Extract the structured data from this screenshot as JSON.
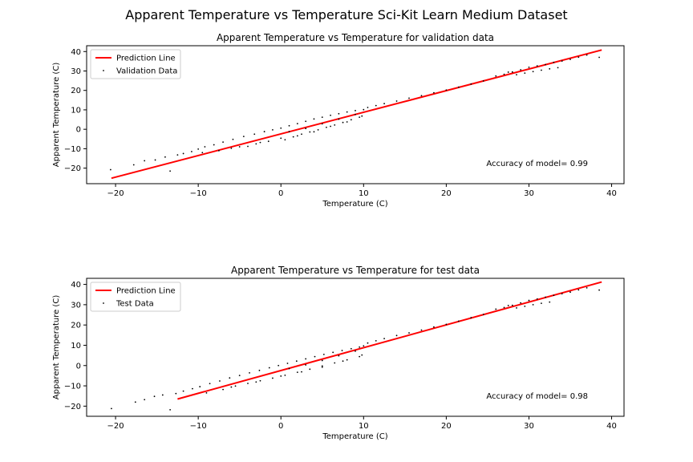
{
  "figure": {
    "suptitle": "Apparent Temperature vs Temperature Sci-Kit Learn Medium Dataset"
  },
  "chart_data": [
    {
      "type": "scatter",
      "title": "Apparent Temperature vs Temperature for validation data",
      "xlabel": "Temperature (C)",
      "ylabel": "Apparent Temperature (C)",
      "xlim": [
        -23.5,
        41.5
      ],
      "ylim": [
        -28,
        43
      ],
      "xticks": [
        -20,
        -10,
        0,
        10,
        20,
        30,
        40
      ],
      "xtick_labels": [
        "−20",
        "−10",
        "0",
        "10",
        "20",
        "30",
        "40"
      ],
      "yticks": [
        -20,
        -10,
        0,
        10,
        20,
        30,
        40
      ],
      "ytick_labels": [
        "−20",
        "−10",
        "0",
        "10",
        "20",
        "30",
        "40"
      ],
      "grid": false,
      "legend_position": "top-left",
      "annotation": "Accuracy of model= 0.99",
      "series": [
        {
          "name": "Prediction Line",
          "kind": "line",
          "color": "#ff0000",
          "x": [
            -20.5,
            38.8
          ],
          "y": [
            -25.2,
            40.8
          ]
        },
        {
          "name": "Validation Data",
          "kind": "scatter",
          "color": "#000000",
          "marker": ".",
          "x": [
            -20.6,
            -17.8,
            -16.5,
            -15.2,
            -14,
            -13.4,
            -12.5,
            -11.8,
            -10.8,
            -10,
            -9.2,
            -8.1,
            -7,
            -5.8,
            -4.5,
            -3.2,
            -2,
            -1,
            0,
            1,
            2,
            3,
            4,
            5,
            6,
            7,
            8,
            9,
            10,
            -9.5,
            -7.5,
            -6,
            -4,
            -3,
            -1.5,
            0.5,
            1.5,
            2.5,
            3.5,
            4.5,
            5.5,
            6.5,
            7.5,
            8.5,
            9.5,
            -5,
            -2.5,
            0,
            2,
            4,
            6,
            8,
            9.8,
            1,
            3,
            5,
            7,
            9,
            10.5,
            11.5,
            12.5,
            14,
            15.5,
            17,
            18.5,
            20,
            21.5,
            23,
            24.5,
            26,
            27,
            28,
            29,
            30,
            31,
            32,
            33,
            34,
            35,
            36,
            37,
            38.5,
            27.5,
            28.5,
            29.5,
            30.5,
            31.5,
            32.5,
            33.5
          ],
          "y": [
            -20.8,
            -18.3,
            -16.2,
            -15.8,
            -14.3,
            -21.5,
            -13.2,
            -12.5,
            -11.5,
            -10.2,
            -9,
            -8,
            -6.6,
            -5.2,
            -3.7,
            -2.5,
            -1.2,
            -0.3,
            0.6,
            1.8,
            2.9,
            4.1,
            5.3,
            6.2,
            7.2,
            8,
            8.9,
            9.6,
            10.1,
            -12,
            -11,
            -9.8,
            -8.8,
            -7.5,
            -6.2,
            -5.4,
            -3.9,
            -2.5,
            -1.4,
            -0.3,
            1,
            2.2,
            3.5,
            4.9,
            6.2,
            -9,
            -6.8,
            -4.6,
            -3.4,
            -1.3,
            1.5,
            3.8,
            6.8,
            -1.2,
            0.4,
            2.8,
            5.2,
            7.6,
            11.2,
            12.2,
            13.2,
            14.5,
            16,
            17.3,
            18.8,
            20.2,
            21.7,
            23.3,
            24.9,
            27.4,
            28.3,
            29.5,
            30.6,
            31.9,
            32.6,
            33.3,
            34.4,
            35.1,
            36,
            37.1,
            38.2,
            37,
            29.4,
            28.1,
            28.9,
            29.7,
            30.4,
            31.1,
            31.7
          ]
        }
      ]
    },
    {
      "type": "scatter",
      "title": "Apparent Temperature vs Temperature for test data",
      "xlabel": "Temperature (C)",
      "ylabel": "Apparent Temperature (C)",
      "xlim": [
        -23.5,
        41.5
      ],
      "ylim": [
        -25,
        43
      ],
      "xticks": [
        -20,
        -10,
        0,
        10,
        20,
        30,
        40
      ],
      "xtick_labels": [
        "−20",
        "−10",
        "0",
        "10",
        "20",
        "30",
        "40"
      ],
      "yticks": [
        -20,
        -10,
        0,
        10,
        20,
        30,
        40
      ],
      "ytick_labels": [
        "−20",
        "−10",
        "0",
        "10",
        "20",
        "30",
        "40"
      ],
      "grid": false,
      "legend_position": "top-left",
      "annotation": "Accuracy of model= 0.98",
      "series": [
        {
          "name": "Prediction Line",
          "kind": "line",
          "color": "#ff0000",
          "x": [
            -12.5,
            38.8
          ],
          "y": [
            -16.5,
            41.2
          ]
        },
        {
          "name": "Test Data",
          "kind": "scatter",
          "color": "#000000",
          "marker": ".",
          "x": [
            -20.5,
            -17.6,
            -16.5,
            -15.3,
            -14.3,
            -13.4,
            -12.7,
            -11.8,
            -10.7,
            -9.8,
            -8.6,
            -7.4,
            -6.2,
            -5,
            -3.8,
            -2.6,
            -1.4,
            -0.3,
            0.8,
            1.9,
            3,
            4.1,
            5.2,
            6.3,
            7.4,
            8.5,
            9.5,
            10,
            -9,
            -7,
            -5.5,
            -4,
            -2.5,
            -1,
            0.5,
            2,
            3.5,
            5,
            6.5,
            8,
            9.5,
            -6,
            -3,
            0,
            2.5,
            5,
            7.5,
            9.8,
            1,
            3,
            5,
            7,
            9,
            10.5,
            11.5,
            12.5,
            14,
            15.5,
            17,
            18.5,
            20,
            21.5,
            23,
            24.5,
            26,
            27,
            28,
            29,
            30,
            31,
            32,
            33,
            34,
            35,
            36,
            37,
            38.5,
            27.5,
            28.5,
            29.5,
            30.5,
            31.5,
            32.5
          ],
          "y": [
            -21.2,
            -18,
            -16.8,
            -15.2,
            -14.5,
            -21.8,
            -13.8,
            -12.6,
            -11.4,
            -10.4,
            -8.9,
            -7.6,
            -6.1,
            -4.9,
            -3.6,
            -2.4,
            -1.1,
            0,
            1.1,
            2.2,
            3.3,
            4.4,
            5.5,
            6.5,
            7.4,
            8.3,
            9.1,
            9.7,
            -13.5,
            -11.8,
            -10.1,
            -8.8,
            -7.5,
            -6.2,
            -4.8,
            -3.3,
            -1.8,
            -0.2,
            1.3,
            2.8,
            4.4,
            -10.6,
            -8.1,
            -5.2,
            -3.1,
            -0.8,
            2.2,
            5.2,
            -1.5,
            0.3,
            2.5,
            4.8,
            7.1,
            11.1,
            12.2,
            13.3,
            14.8,
            16.1,
            17.5,
            19,
            20.3,
            21.9,
            23.6,
            25.2,
            27.8,
            28.6,
            29.7,
            30.9,
            32.1,
            32.8,
            33.7,
            34.6,
            35.4,
            36.2,
            37.3,
            38.3,
            37.2,
            29.6,
            28.4,
            29.2,
            30,
            30.7,
            31.3
          ]
        }
      ]
    }
  ]
}
